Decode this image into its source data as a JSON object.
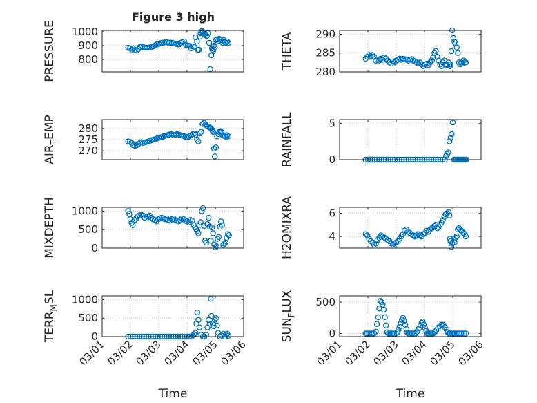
{
  "figure_title": "Figure 3 high",
  "colors": {
    "marker": "#0072BD",
    "axis": "#262626",
    "grid": "#c8c8c8"
  },
  "chart_data": [
    {
      "id": "pressure",
      "type": "scatter",
      "title": "Figure 3 high",
      "xlabel": "",
      "ylabel": "PRESSURE",
      "ylim": [
        710,
        1010
      ],
      "yticks": [
        800,
        900,
        1000
      ],
      "yticklabels": [
        "800",
        "900",
        "1000"
      ],
      "xlim": [
        0,
        5
      ],
      "xticks": [
        0,
        1,
        2,
        3,
        4,
        5
      ],
      "xticklabels": [
        "03/01",
        "03/02",
        "03/03",
        "03/04",
        "03/05",
        "03/06"
      ],
      "grid": true,
      "marker": "open-circle",
      "x": [
        0.92,
        0.98,
        1.04,
        1.1,
        1.16,
        1.22,
        1.28,
        1.34,
        1.4,
        1.46,
        1.52,
        1.58,
        1.64,
        1.7,
        1.76,
        1.82,
        1.88,
        1.94,
        2.0,
        2.06,
        2.12,
        2.18,
        2.24,
        2.3,
        2.36,
        2.42,
        2.48,
        2.54,
        2.6,
        2.66,
        2.72,
        2.78,
        2.84,
        2.9,
        2.96,
        3.02,
        3.08,
        3.14,
        3.2,
        3.26,
        3.3,
        3.35,
        3.38,
        3.42,
        3.45,
        3.48,
        3.52,
        3.56,
        3.6,
        3.63,
        3.66,
        3.7,
        3.74,
        3.78,
        3.82,
        3.86,
        3.88,
        3.9,
        3.92,
        3.95,
        3.98,
        4.02,
        4.06,
        4.1,
        4.14,
        4.18,
        4.22,
        4.26,
        4.3,
        4.34,
        4.38,
        4.42,
        4.46
      ],
      "y": [
        885,
        880,
        872,
        880,
        868,
        865,
        875,
        890,
        893,
        888,
        885,
        885,
        885,
        888,
        892,
        895,
        903,
        910,
        912,
        918,
        920,
        922,
        925,
        925,
        918,
        922,
        920,
        916,
        912,
        910,
        908,
        920,
        925,
        930,
        905,
        900,
        898,
        880,
        895,
        890,
        960,
        930,
        870,
        870,
        965,
        990,
        1005,
        1000,
        990,
        985,
        975,
        970,
        990,
        920,
        730,
        830,
        880,
        870,
        860,
        900,
        890,
        940,
        945,
        935,
        950,
        940,
        930,
        920,
        940,
        925,
        920,
        930,
        920
      ]
    },
    {
      "id": "theta",
      "type": "scatter",
      "title": "",
      "xlabel": "",
      "ylabel": "THETA",
      "ylim": [
        280,
        291
      ],
      "yticks": [
        280,
        285,
        290
      ],
      "yticklabels": [
        "280",
        "285",
        "290"
      ],
      "xlim": [
        0,
        5
      ],
      "xticks": [
        0,
        1,
        2,
        3,
        4,
        5
      ],
      "xticklabels": [
        "03/01",
        "03/02",
        "03/03",
        "03/04",
        "03/05",
        "03/06"
      ],
      "grid": true,
      "marker": "open-circle",
      "x": [
        0.92,
        0.98,
        1.04,
        1.1,
        1.16,
        1.22,
        1.28,
        1.34,
        1.4,
        1.46,
        1.52,
        1.58,
        1.64,
        1.7,
        1.76,
        1.82,
        1.88,
        1.94,
        2.0,
        2.06,
        2.12,
        2.18,
        2.24,
        2.3,
        2.36,
        2.42,
        2.48,
        2.54,
        2.6,
        2.66,
        2.72,
        2.78,
        2.84,
        2.9,
        2.96,
        3.02,
        3.08,
        3.14,
        3.2,
        3.26,
        3.3,
        3.35,
        3.4,
        3.45,
        3.5,
        3.55,
        3.6,
        3.65,
        3.7,
        3.75,
        3.8,
        3.85,
        3.88,
        3.9,
        3.92,
        3.95,
        3.98,
        4.02,
        4.06,
        4.1,
        4.14,
        4.18,
        4.22,
        4.26,
        4.3,
        4.34,
        4.38,
        4.42,
        4.46
      ],
      "y": [
        283.5,
        284,
        284.5,
        284.2,
        284.5,
        284,
        283,
        283.2,
        283,
        283.5,
        283.2,
        283.8,
        283.5,
        283,
        282.5,
        282.2,
        282.8,
        282.5,
        283,
        283.2,
        283.5,
        283.2,
        283.5,
        283.4,
        283.2,
        283,
        283.2,
        283.4,
        283,
        282.8,
        282.5,
        282.3,
        282.5,
        282,
        281.5,
        282,
        282.2,
        281.8,
        282.5,
        283,
        283.8,
        285,
        285.5,
        284,
        283,
        282,
        281.5,
        282.5,
        283,
        282,
        281.8,
        282.5,
        282,
        281.5,
        282,
        285.5,
        291,
        289,
        288,
        287.5,
        286.5,
        285,
        282.5,
        282,
        282.5,
        282.2,
        283,
        282.5,
        282.5
      ]
    },
    {
      "id": "air_temp",
      "type": "scatter",
      "title": "",
      "xlabel": "",
      "ylabel": "AIR_TEMP",
      "ylim": [
        266,
        284
      ],
      "yticks": [
        270,
        275,
        280
      ],
      "yticklabels": [
        "270",
        "275",
        "280"
      ],
      "xlim": [
        0,
        5
      ],
      "xticks": [
        0,
        1,
        2,
        3,
        4,
        5
      ],
      "xticklabels": [
        "03/01",
        "03/02",
        "03/03",
        "03/04",
        "03/05",
        "03/06"
      ],
      "grid": true,
      "marker": "open-circle",
      "x": [
        0.92,
        0.98,
        1.04,
        1.1,
        1.16,
        1.22,
        1.28,
        1.34,
        1.4,
        1.46,
        1.52,
        1.58,
        1.64,
        1.7,
        1.76,
        1.82,
        1.88,
        1.94,
        2.0,
        2.06,
        2.12,
        2.18,
        2.24,
        2.3,
        2.36,
        2.42,
        2.48,
        2.54,
        2.6,
        2.66,
        2.72,
        2.78,
        2.84,
        2.9,
        2.96,
        3.02,
        3.08,
        3.14,
        3.2,
        3.26,
        3.3,
        3.35,
        3.4,
        3.45,
        3.5,
        3.55,
        3.6,
        3.65,
        3.7,
        3.75,
        3.8,
        3.85,
        3.88,
        3.9,
        3.92,
        3.95,
        3.98,
        4.02,
        4.06,
        4.1,
        4.14,
        4.18,
        4.22,
        4.26,
        4.3,
        4.34,
        4.38,
        4.42,
        4.46
      ],
      "y": [
        274.2,
        274,
        273.5,
        272.5,
        272.2,
        272.5,
        273,
        273.5,
        273.8,
        273.5,
        273.8,
        274,
        274.2,
        274.5,
        274.8,
        275,
        275.2,
        275.5,
        275.8,
        276,
        276.2,
        276.5,
        276.8,
        277,
        277.2,
        277.5,
        277.3,
        277,
        277.2,
        277.5,
        277.2,
        277,
        276.8,
        276.5,
        276.2,
        276,
        276.5,
        277,
        277.5,
        277.8,
        277.2,
        275,
        274.2,
        277.8,
        278.5,
        282,
        282.5,
        281.8,
        281.2,
        280.8,
        280.5,
        280,
        279.5,
        279,
        278.5,
        271,
        267.5,
        271.5,
        276.5,
        277.5,
        278.5,
        278.8,
        278.5,
        277,
        276.8,
        276.5,
        276.2,
        277,
        276.5
      ]
    },
    {
      "id": "rainfall",
      "type": "scatter",
      "title": "",
      "xlabel": "",
      "ylabel": "RAINFALL",
      "ylim": [
        0,
        5.5
      ],
      "yticks": [
        0,
        5
      ],
      "yticklabels": [
        "0",
        "5"
      ],
      "xlim": [
        0,
        5
      ],
      "xticks": [
        0,
        1,
        2,
        3,
        4,
        5
      ],
      "xticklabels": [
        "03/01",
        "03/02",
        "03/03",
        "03/04",
        "03/05",
        "03/06"
      ],
      "grid": true,
      "marker": "open-circle",
      "x": [
        0.92,
        1.0,
        1.08,
        1.16,
        1.24,
        1.32,
        1.4,
        1.48,
        1.56,
        1.64,
        1.72,
        1.8,
        1.88,
        1.96,
        2.04,
        2.12,
        2.2,
        2.28,
        2.36,
        2.44,
        2.52,
        2.6,
        2.68,
        2.76,
        2.84,
        2.92,
        3.0,
        3.08,
        3.16,
        3.24,
        3.32,
        3.4,
        3.48,
        3.56,
        3.64,
        3.72,
        3.76,
        3.8,
        3.84,
        3.88,
        3.92,
        3.96,
        4.0,
        4.04,
        4.08,
        4.12,
        4.16,
        4.2,
        4.24,
        4.28,
        4.32,
        4.36,
        4.4,
        4.44,
        4.48
      ],
      "y": [
        0,
        0,
        0,
        0,
        0,
        0,
        0,
        0,
        0,
        0,
        0,
        0,
        0,
        0,
        0,
        0,
        0,
        0,
        0,
        0,
        0,
        0,
        0,
        0,
        0,
        0,
        0,
        0,
        0,
        0,
        0,
        0,
        0,
        0,
        0,
        0,
        0.5,
        0.8,
        1.0,
        2.5,
        3.0,
        3.5,
        5.1,
        0,
        0,
        0,
        0,
        0,
        0,
        0,
        0,
        0,
        0,
        0,
        0
      ]
    },
    {
      "id": "mixdepth",
      "type": "scatter",
      "title": "",
      "xlabel": "",
      "ylabel": "MIXDEPTH",
      "ylim": [
        0,
        1100
      ],
      "yticks": [
        0,
        500,
        1000
      ],
      "yticklabels": [
        "0",
        "500",
        "1000"
      ],
      "xlim": [
        0,
        5
      ],
      "xticks": [
        0,
        1,
        2,
        3,
        4,
        5
      ],
      "xticklabels": [
        "03/01",
        "03/02",
        "03/03",
        "03/04",
        "03/05",
        "03/06"
      ],
      "grid": true,
      "marker": "open-circle",
      "x": [
        0.92,
        0.96,
        1.0,
        1.04,
        1.08,
        1.14,
        1.2,
        1.26,
        1.32,
        1.38,
        1.44,
        1.5,
        1.56,
        1.62,
        1.68,
        1.74,
        1.8,
        1.86,
        1.92,
        1.98,
        2.04,
        2.1,
        2.16,
        2.22,
        2.28,
        2.34,
        2.4,
        2.46,
        2.52,
        2.58,
        2.64,
        2.7,
        2.76,
        2.82,
        2.88,
        2.94,
        3.0,
        3.06,
        3.12,
        3.18,
        3.24,
        3.28,
        3.32,
        3.36,
        3.4,
        3.44,
        3.48,
        3.52,
        3.56,
        3.6,
        3.64,
        3.68,
        3.72,
        3.76,
        3.8,
        3.84,
        3.88,
        3.92,
        3.96,
        4.0,
        4.04,
        4.08,
        4.12,
        4.16,
        4.2,
        4.24,
        4.28,
        4.32,
        4.36,
        4.4,
        4.44,
        4.48
      ],
      "y": [
        1000,
        920,
        780,
        680,
        620,
        750,
        800,
        850,
        880,
        900,
        880,
        820,
        800,
        850,
        880,
        820,
        780,
        760,
        720,
        780,
        800,
        820,
        800,
        780,
        800,
        760,
        740,
        780,
        800,
        760,
        740,
        720,
        760,
        800,
        780,
        740,
        720,
        700,
        760,
        740,
        620,
        560,
        520,
        460,
        400,
        620,
        700,
        1000,
        1080,
        600,
        200,
        150,
        650,
        820,
        580,
        200,
        560,
        400,
        100,
        20,
        50,
        250,
        300,
        580,
        720,
        620,
        90,
        120,
        150,
        280,
        380,
        350
      ]
    },
    {
      "id": "h2omixra",
      "type": "scatter",
      "title": "",
      "xlabel": "",
      "ylabel": "H2OMIXRA",
      "ylim": [
        3,
        6.5
      ],
      "yticks": [
        4,
        6
      ],
      "yticklabels": [
        "4",
        "6"
      ],
      "xlim": [
        0,
        5
      ],
      "xticks": [
        0,
        1,
        2,
        3,
        4,
        5
      ],
      "xticklabels": [
        "03/01",
        "03/02",
        "03/03",
        "03/04",
        "03/05",
        "03/06"
      ],
      "grid": true,
      "marker": "open-circle",
      "x": [
        0.92,
        0.98,
        1.04,
        1.1,
        1.16,
        1.22,
        1.28,
        1.34,
        1.4,
        1.46,
        1.52,
        1.58,
        1.64,
        1.7,
        1.76,
        1.82,
        1.88,
        1.94,
        2.0,
        2.06,
        2.12,
        2.18,
        2.24,
        2.3,
        2.36,
        2.42,
        2.48,
        2.54,
        2.6,
        2.66,
        2.72,
        2.78,
        2.84,
        2.9,
        2.96,
        3.02,
        3.08,
        3.14,
        3.2,
        3.26,
        3.3,
        3.35,
        3.4,
        3.45,
        3.5,
        3.55,
        3.6,
        3.65,
        3.7,
        3.75,
        3.8,
        3.85,
        3.88,
        3.9,
        3.92,
        3.95,
        3.98,
        4.02,
        4.06,
        4.1,
        4.14,
        4.18,
        4.22,
        4.26,
        4.3,
        4.34,
        4.38,
        4.42,
        4.46
      ],
      "y": [
        4.2,
        4.1,
        3.8,
        3.6,
        3.5,
        3.3,
        3.4,
        3.7,
        3.9,
        4.1,
        4.0,
        3.9,
        3.8,
        3.7,
        3.6,
        3.4,
        3.3,
        3.4,
        3.5,
        3.6,
        3.8,
        4.0,
        4.2,
        4.5,
        4.6,
        4.4,
        4.3,
        4.2,
        4.1,
        4.0,
        4.1,
        4.2,
        4.1,
        4.0,
        4.2,
        4.3,
        4.5,
        4.4,
        4.6,
        4.7,
        4.8,
        4.9,
        5.0,
        4.7,
        4.8,
        5.0,
        5.2,
        5.4,
        5.7,
        5.9,
        6.0,
        6.1,
        5.8,
        3.8,
        3.6,
        3.1,
        3.4,
        3.8,
        3.5,
        3.9,
        4.0,
        4.6,
        4.7,
        4.6,
        4.5,
        4.4,
        4.3,
        4.2,
        4.0
      ]
    },
    {
      "id": "terr_msl",
      "type": "scatter",
      "title": "",
      "xlabel": "Time",
      "ylabel": "TERR_MSL",
      "ylim": [
        0,
        1100
      ],
      "yticks": [
        0,
        500,
        1000
      ],
      "yticklabels": [
        "0",
        "500",
        "1000"
      ],
      "xlim": [
        0,
        5
      ],
      "xticks": [
        0,
        1,
        2,
        3,
        4,
        5
      ],
      "xticklabels": [
        "03/01",
        "03/02",
        "03/03",
        "03/04",
        "03/05",
        "03/06"
      ],
      "grid": true,
      "marker": "open-circle",
      "x": [
        0.92,
        1.0,
        1.08,
        1.16,
        1.24,
        1.32,
        1.4,
        1.48,
        1.56,
        1.64,
        1.72,
        1.8,
        1.88,
        1.96,
        2.04,
        2.12,
        2.2,
        2.28,
        2.36,
        2.44,
        2.52,
        2.6,
        2.68,
        2.76,
        2.84,
        2.92,
        3.0,
        3.08,
        3.16,
        3.2,
        3.25,
        3.3,
        3.33,
        3.36,
        3.4,
        3.44,
        3.5,
        3.56,
        3.62,
        3.68,
        3.72,
        3.76,
        3.8,
        3.84,
        3.86,
        3.9,
        3.94,
        3.98,
        4.02,
        4.06,
        4.1,
        4.16,
        4.22,
        4.28,
        4.34,
        4.38,
        4.42,
        4.46
      ],
      "y": [
        0,
        0,
        0,
        0,
        0,
        0,
        0,
        0,
        0,
        0,
        0,
        0,
        0,
        0,
        0,
        0,
        0,
        0,
        0,
        0,
        0,
        0,
        0,
        0,
        0,
        0,
        0,
        0,
        0,
        30,
        60,
        100,
        350,
        650,
        450,
        250,
        50,
        0,
        0,
        50,
        250,
        450,
        350,
        1020,
        560,
        350,
        280,
        450,
        500,
        300,
        100,
        0,
        30,
        80,
        0,
        50,
        80,
        20
      ]
    },
    {
      "id": "sun_flux",
      "type": "scatter",
      "title": "",
      "xlabel": "Time",
      "ylabel": "SUN_FLUX",
      "ylim": [
        -50,
        600
      ],
      "yticks": [
        0,
        500
      ],
      "yticklabels": [
        "0",
        "500"
      ],
      "xlim": [
        0,
        5
      ],
      "xticks": [
        0,
        1,
        2,
        3,
        4,
        5
      ],
      "xticklabels": [
        "03/01",
        "03/02",
        "03/03",
        "03/04",
        "03/05",
        "03/06"
      ],
      "grid": true,
      "marker": "open-circle",
      "x": [
        0.92,
        0.98,
        1.04,
        1.1,
        1.16,
        1.22,
        1.28,
        1.32,
        1.36,
        1.4,
        1.44,
        1.48,
        1.52,
        1.56,
        1.6,
        1.64,
        1.68,
        1.72,
        1.76,
        1.8,
        1.86,
        1.92,
        1.98,
        2.04,
        2.08,
        2.12,
        2.16,
        2.2,
        2.24,
        2.28,
        2.32,
        2.36,
        2.4,
        2.44,
        2.48,
        2.52,
        2.56,
        2.62,
        2.68,
        2.74,
        2.8,
        2.86,
        2.9,
        2.94,
        2.98,
        3.02,
        3.06,
        3.1,
        3.14,
        3.18,
        3.22,
        3.26,
        3.3,
        3.36,
        3.42,
        3.48,
        3.54,
        3.6,
        3.66,
        3.72,
        3.78,
        3.82,
        3.86,
        3.9,
        3.94,
        3.98,
        4.02,
        4.06,
        4.1,
        4.16,
        4.22,
        4.28,
        4.34,
        4.4,
        4.46
      ],
      "y": [
        0,
        0,
        0,
        0,
        0,
        0,
        30,
        150,
        260,
        400,
        520,
        500,
        460,
        380,
        260,
        130,
        20,
        0,
        0,
        0,
        0,
        0,
        0,
        20,
        60,
        110,
        160,
        220,
        250,
        200,
        140,
        70,
        10,
        0,
        0,
        0,
        0,
        0,
        0,
        30,
        80,
        130,
        170,
        190,
        140,
        90,
        40,
        0,
        0,
        0,
        0,
        0,
        0,
        20,
        50,
        90,
        120,
        140,
        140,
        100,
        60,
        20,
        0,
        0,
        0,
        0,
        0,
        0,
        0,
        0,
        0,
        0,
        0,
        0,
        0
      ]
    }
  ]
}
